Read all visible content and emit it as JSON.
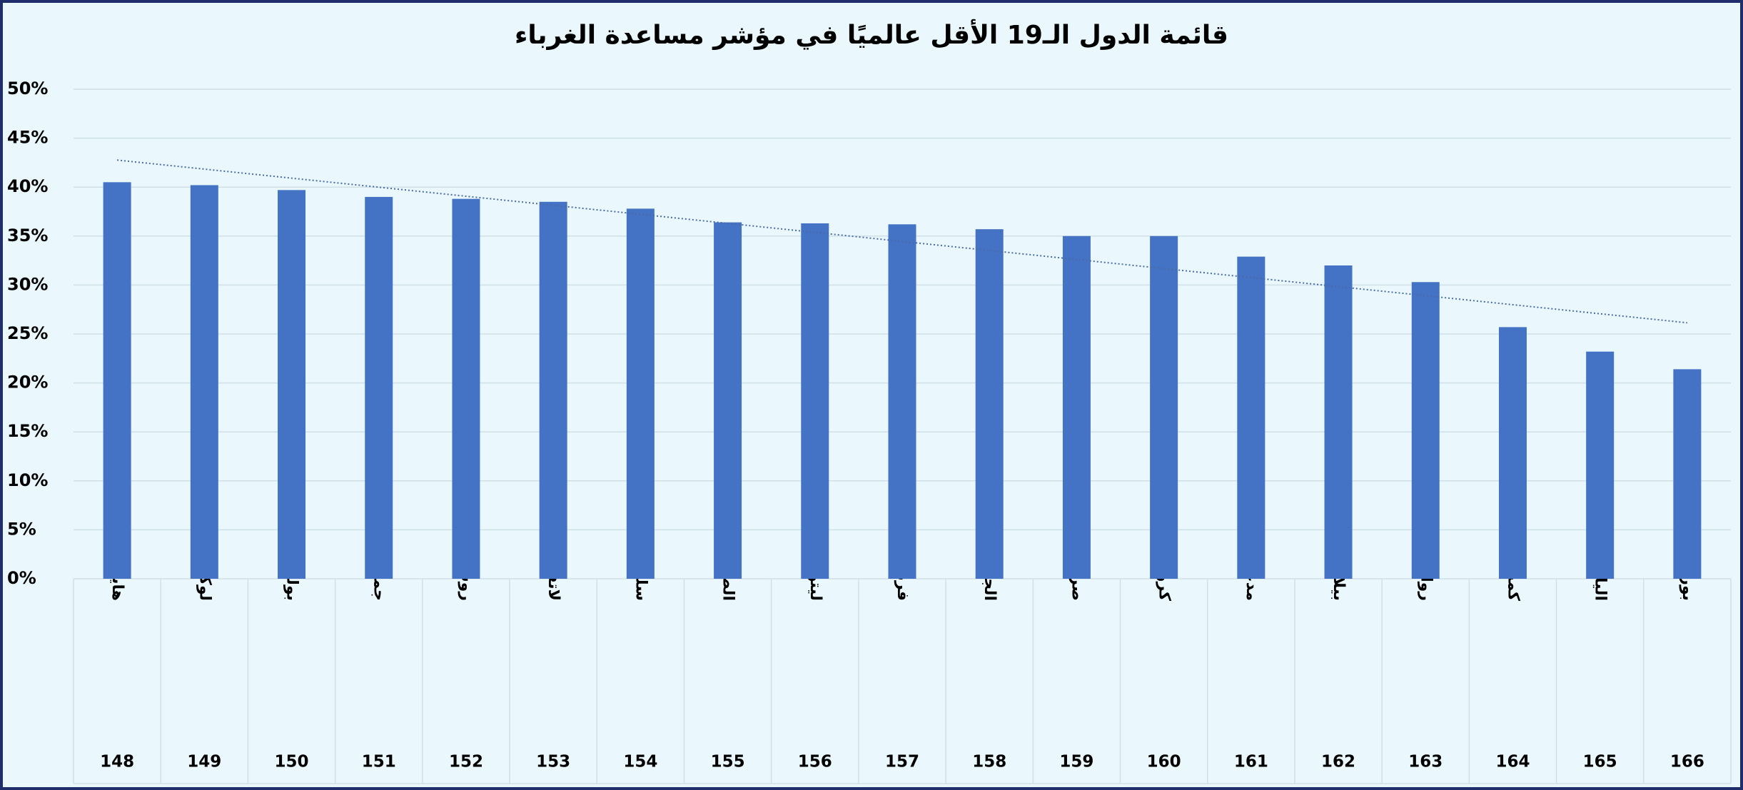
{
  "chart_data": {
    "type": "bar",
    "title": "قائمة الدول الـ19 الأقل عالميًا في مؤشر مساعدة الغرباء",
    "categories": [
      "هايتي",
      "لوكسمبورج",
      "بولندا",
      "جمهورية التشيك",
      "روسيا",
      "لاتفيا",
      "سلوفاكيا",
      "الصين",
      "ليتوانيا",
      "فرنسا",
      "الجبل الأسود",
      "صربيا",
      "كرواتيا",
      "مدغشقر",
      "بيلاروسيا",
      "رواندا",
      "كمبوديا",
      "اليابان",
      "بوروندي"
    ],
    "ranks": [
      148,
      149,
      150,
      151,
      152,
      153,
      154,
      155,
      156,
      157,
      158,
      159,
      160,
      161,
      162,
      163,
      164,
      165,
      166
    ],
    "values": [
      40.5,
      40.2,
      39.7,
      39.0,
      38.8,
      38.5,
      37.8,
      36.4,
      36.3,
      36.2,
      35.7,
      35.0,
      35.0,
      32.9,
      32.0,
      30.3,
      25.7,
      23.2,
      21.4
    ],
    "color": "#4472c4",
    "ylim": [
      0,
      50
    ],
    "yticks": [
      {
        "value": 0,
        "label": "0%"
      },
      {
        "value": 5,
        "label": "5%"
      },
      {
        "value": 10,
        "label": "10%"
      },
      {
        "value": 15,
        "label": "15%"
      },
      {
        "value": 20,
        "label": "20%"
      },
      {
        "value": 25,
        "label": "25%"
      },
      {
        "value": 30,
        "label": "30%"
      },
      {
        "value": 35,
        "label": "35%"
      },
      {
        "value": 40,
        "label": "40%"
      },
      {
        "value": 45,
        "label": "45%"
      },
      {
        "value": 50,
        "label": "50%"
      }
    ],
    "grid": true,
    "trendline": "linear",
    "trendline_color": "#4a6aa8"
  }
}
